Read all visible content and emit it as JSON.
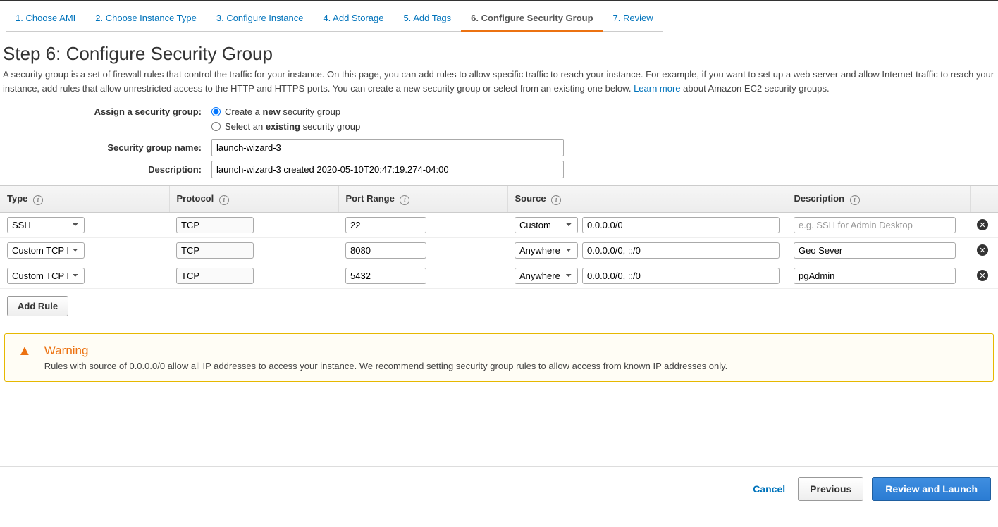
{
  "wizard_tabs": [
    {
      "label": "1. Choose AMI",
      "active": false
    },
    {
      "label": "2. Choose Instance Type",
      "active": false
    },
    {
      "label": "3. Configure Instance",
      "active": false
    },
    {
      "label": "4. Add Storage",
      "active": false
    },
    {
      "label": "5. Add Tags",
      "active": false
    },
    {
      "label": "6. Configure Security Group",
      "active": true
    },
    {
      "label": "7. Review",
      "active": false
    }
  ],
  "page": {
    "title": "Step 6: Configure Security Group",
    "desc_pre": "A security group is a set of firewall rules that control the traffic for your instance. On this page, you can add rules to allow specific traffic to reach your instance. For example, if you want to set up a web server and allow Internet traffic to reach your instance, add rules that allow unrestricted access to the HTTP and HTTPS ports. You can create a new security group or select from an existing one below. ",
    "learn_more": "Learn more",
    "desc_post": " about Amazon EC2 security groups."
  },
  "assign": {
    "label": "Assign a security group:",
    "create_pre": "Create a ",
    "create_bold": "new",
    "create_post": " security group",
    "select_pre": "Select an ",
    "select_bold": "existing",
    "select_post": " security group",
    "selected": "create"
  },
  "fields": {
    "name_label": "Security group name:",
    "name_value": "launch-wizard-3",
    "desc_label": "Description:",
    "desc_value": "launch-wizard-3 created 2020-05-10T20:47:19.274-04:00"
  },
  "table": {
    "headers": {
      "type": "Type",
      "protocol": "Protocol",
      "port_range": "Port Range",
      "source": "Source",
      "description": "Description"
    },
    "desc_placeholder": "e.g. SSH for Admin Desktop",
    "rows": [
      {
        "type": "SSH",
        "protocol": "TCP",
        "port": "22",
        "source_mode": "Custom",
        "source_value": "0.0.0.0/0",
        "description": ""
      },
      {
        "type": "Custom TCP Rule",
        "protocol": "TCP",
        "port": "8080",
        "source_mode": "Anywhere",
        "source_value": "0.0.0.0/0, ::/0",
        "description": "Geo Sever"
      },
      {
        "type": "Custom TCP Rule",
        "protocol": "TCP",
        "port": "5432",
        "source_mode": "Anywhere",
        "source_value": "0.0.0.0/0, ::/0",
        "description": "pgAdmin"
      }
    ]
  },
  "buttons": {
    "add_rule": "Add Rule",
    "cancel": "Cancel",
    "previous": "Previous",
    "review_launch": "Review and Launch"
  },
  "warning": {
    "title": "Warning",
    "text": "Rules with source of 0.0.0.0/0 allow all IP addresses to access your instance. We recommend setting security group rules to allow access from known IP addresses only."
  },
  "colors": {
    "link": "#0073bb",
    "accent": "#ec7211",
    "primary_btn": "#2b7cd3"
  }
}
